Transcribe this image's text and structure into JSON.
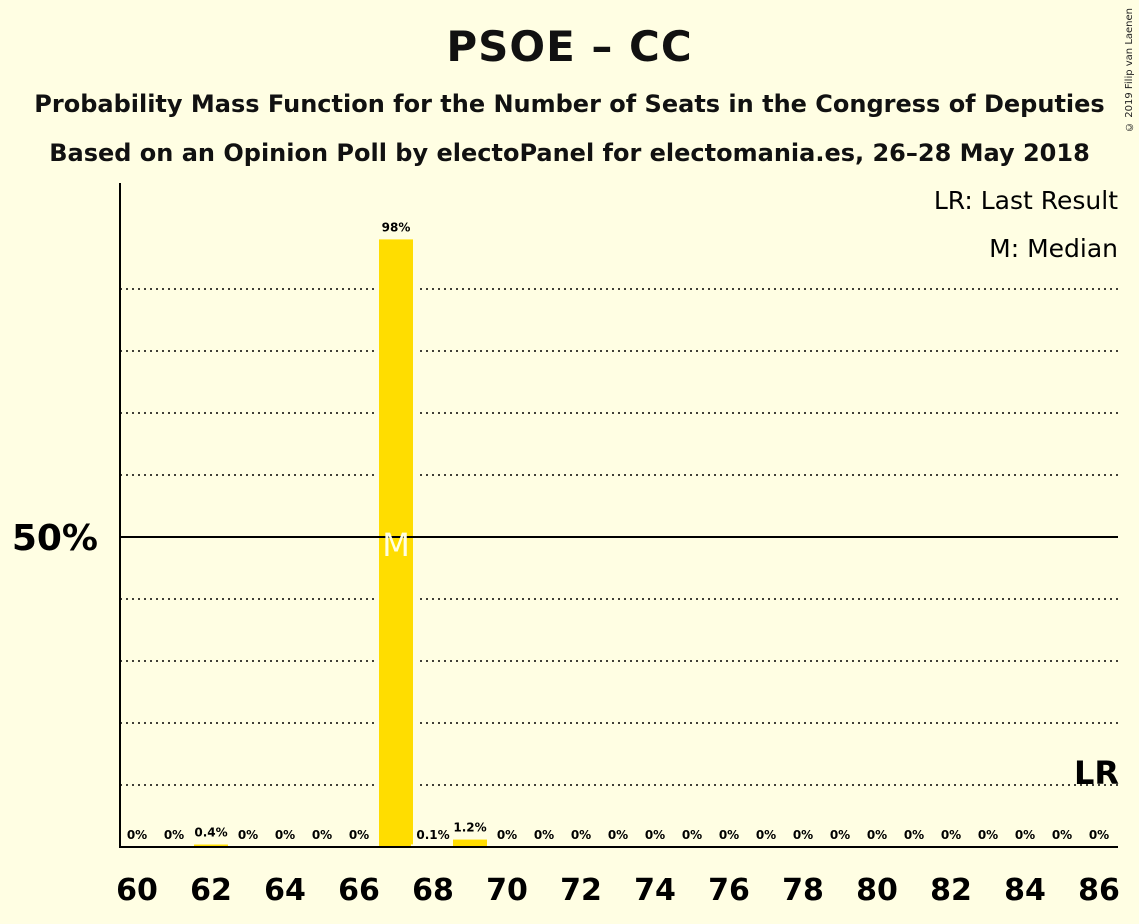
{
  "title": "PSOE – CC",
  "subtitle_1": "Probability Mass Function for the Number of Seats in the Congress of Deputies",
  "subtitle_2": "Based on an Opinion Poll by electoPanel for electomania.es, 26–28 May 2018",
  "copyright": "© 2019 Filip van Laenen",
  "legend": {
    "last_result": "LR: Last Result",
    "median": "M: Median"
  },
  "colors": {
    "background": "#FFFEE3",
    "bar": "#FFDD00",
    "median_text": "#FFFEE3",
    "axis": "#000000"
  },
  "chart_data": {
    "type": "bar",
    "x": [
      60,
      61,
      62,
      63,
      64,
      65,
      66,
      67,
      68,
      69,
      70,
      71,
      72,
      73,
      74,
      75,
      76,
      77,
      78,
      79,
      80,
      81,
      82,
      83,
      84,
      85,
      86
    ],
    "values": [
      0,
      0,
      0.4,
      0,
      0,
      0,
      0,
      98,
      0.1,
      1.2,
      0,
      0,
      0,
      0,
      0,
      0,
      0,
      0,
      0,
      0,
      0,
      0,
      0,
      0,
      0,
      0,
      0
    ],
    "data_labels": [
      "0%",
      "0%",
      "0.4%",
      "0%",
      "0%",
      "0%",
      "0%",
      "98%",
      "0.1%",
      "1.2%",
      "0%",
      "0%",
      "0%",
      "0%",
      "0%",
      "0%",
      "0%",
      "0%",
      "0%",
      "0%",
      "0%",
      "0%",
      "0%",
      "0%",
      "0%",
      "0%",
      "0%"
    ],
    "x_tick_labels": [
      "60",
      "62",
      "64",
      "66",
      "68",
      "70",
      "72",
      "74",
      "76",
      "78",
      "80",
      "82",
      "84",
      "86"
    ],
    "x_ticks": [
      60,
      62,
      64,
      66,
      68,
      70,
      72,
      74,
      76,
      78,
      80,
      82,
      84,
      86
    ],
    "y_tick_label": "50%",
    "y_tick_value": 50,
    "ylim": [
      0,
      107
    ],
    "gridlines": [
      10,
      20,
      30,
      40,
      60,
      70,
      80,
      90
    ],
    "median": 67,
    "median_label": "M",
    "last_result": 86,
    "last_result_label": "LR",
    "xlabel": "",
    "ylabel": ""
  }
}
